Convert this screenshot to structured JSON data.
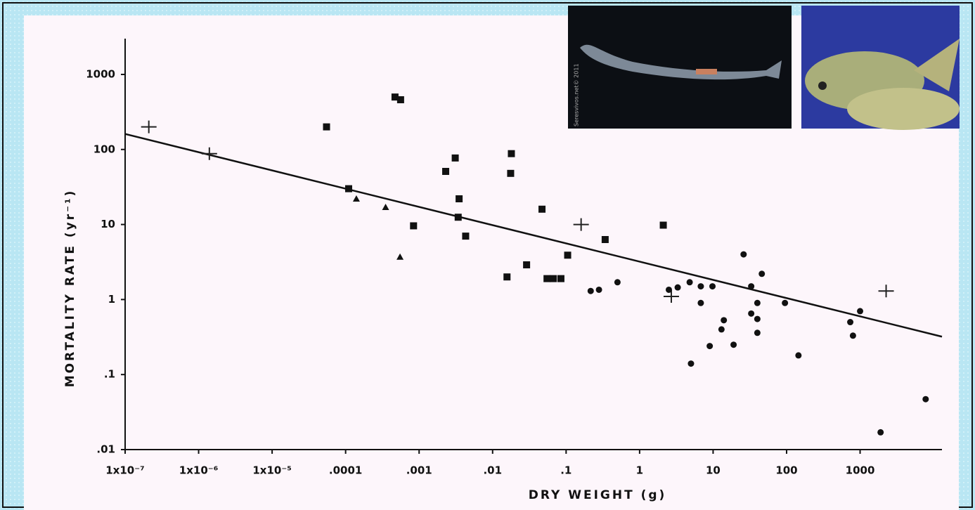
{
  "chart_data": {
    "type": "scatter",
    "x_label": "DRY WEIGHT (g)",
    "y_label": "MORTALITY RATE (yr⁻¹)",
    "photo_credit": "Seresvivos.net© 2011",
    "xlog": true,
    "ylog": true,
    "xlim": [
      1e-07,
      13000
    ],
    "ylim": [
      0.01,
      3000
    ],
    "xticks": [
      {
        "value": 1e-07,
        "label": "1x10⁻⁷"
      },
      {
        "value": 1e-06,
        "label": "1x10⁻⁶"
      },
      {
        "value": 1e-05,
        "label": "1x10⁻⁵"
      },
      {
        "value": 0.0001,
        "label": ".0001"
      },
      {
        "value": 0.001,
        "label": ".001"
      },
      {
        "value": 0.01,
        "label": ".01"
      },
      {
        "value": 0.1,
        "label": ".1"
      },
      1,
      10,
      100,
      1000
    ],
    "yticks": [
      {
        "value": 0.01,
        "label": ".01"
      },
      {
        "value": 0.1,
        "label": ".1"
      },
      1,
      10,
      100,
      1000
    ],
    "series": [
      {
        "marker": "plus",
        "color": "#222222",
        "x": [
          2.1e-07,
          1.4e-06,
          0.16,
          2.7,
          2260
        ],
        "values": [
          200,
          88,
          10,
          1.1,
          1.3
        ]
      },
      {
        "marker": "triangle",
        "color": "#111111",
        "x": [
          0.00014,
          0.00035,
          0.00055
        ],
        "values": [
          22,
          17,
          3.7
        ]
      },
      {
        "marker": "square",
        "color": "#111111",
        "x": [
          5.5e-05,
          0.00011,
          0.00047,
          0.00056,
          0.00084,
          0.0023,
          0.0031,
          0.0035,
          0.0034,
          0.0043,
          0.0157,
          0.018,
          0.0176,
          0.029,
          0.047,
          0.055,
          0.067,
          0.085,
          0.105,
          0.34,
          2.1
        ],
        "values": [
          200,
          30,
          500,
          460,
          9.6,
          51,
          77,
          22,
          12.5,
          7,
          2,
          88,
          48,
          2.9,
          16,
          1.9,
          1.9,
          1.9,
          3.9,
          6.3,
          9.8
        ]
      },
      {
        "marker": "circle",
        "color": "#111111",
        "x": [
          0.216,
          0.28,
          0.5,
          2.5,
          3.3,
          4.8,
          5.0,
          6.8,
          6.8,
          9.8,
          9.0,
          13,
          14,
          19,
          26,
          33,
          33,
          40,
          40,
          40,
          46,
          95,
          145,
          735,
          800,
          1000,
          7800,
          1900
        ],
        "values": [
          1.3,
          1.35,
          1.7,
          1.35,
          1.45,
          1.7,
          0.14,
          1.5,
          0.9,
          1.5,
          0.24,
          0.4,
          0.53,
          0.25,
          4.0,
          1.5,
          0.65,
          0.9,
          0.55,
          0.36,
          2.2,
          0.9,
          0.18,
          0.5,
          0.33,
          0.7,
          0.047,
          0.017
        ]
      }
    ],
    "fit_line": {
      "color": "#111111",
      "x": [
        1e-07,
        13000
      ],
      "values": [
        161,
        0.32
      ]
    }
  }
}
